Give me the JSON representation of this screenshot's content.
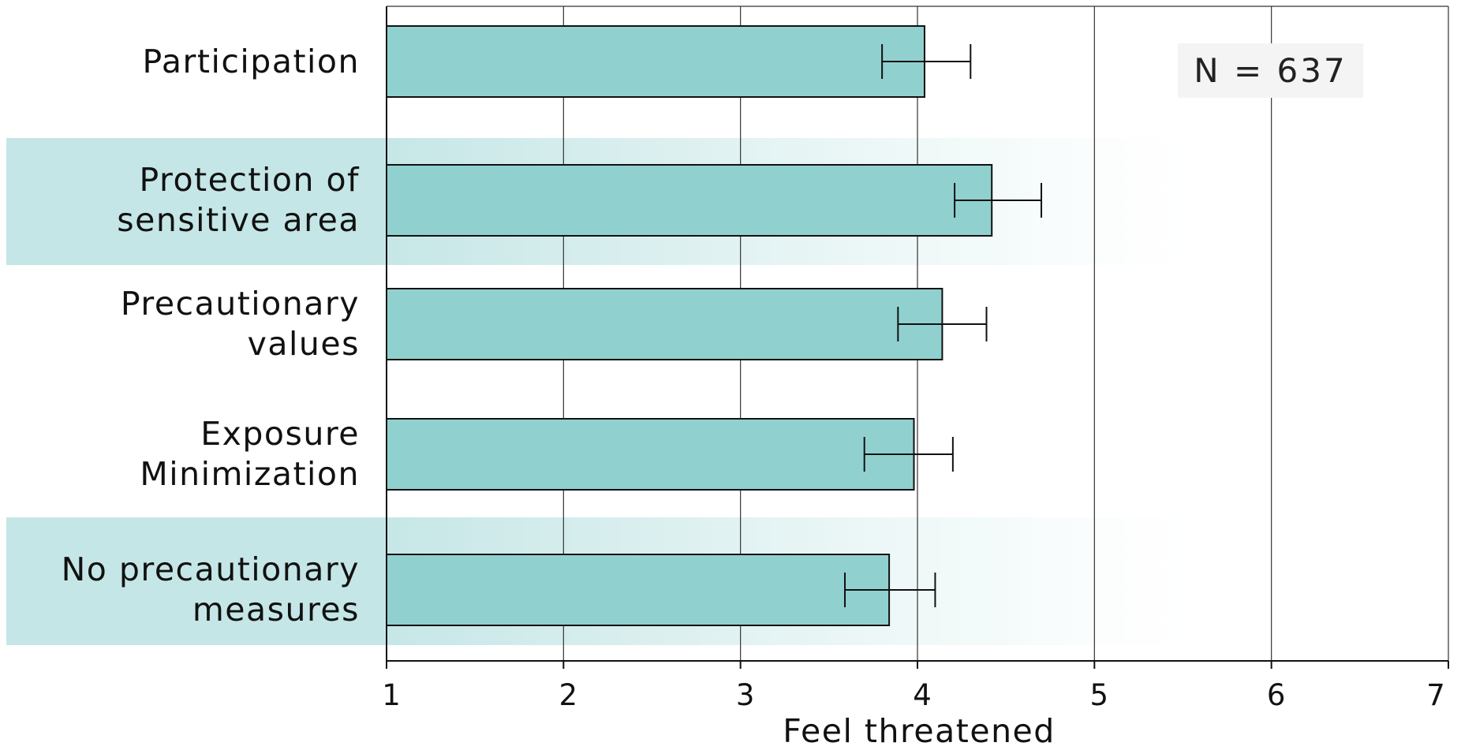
{
  "chart_data": {
    "type": "bar",
    "orientation": "horizontal",
    "categories": [
      "Participation",
      "Protection of\nsensitive area",
      "Precautionary\nvalues",
      "Exposure\nMinimization",
      "No precautionary\nmeasures"
    ],
    "values": [
      4.04,
      4.42,
      4.14,
      3.98,
      3.84
    ],
    "error_low": [
      3.8,
      4.21,
      3.89,
      3.7,
      3.59
    ],
    "error_high": [
      4.3,
      4.7,
      4.39,
      4.2,
      4.1
    ],
    "highlighted_categories": [
      1,
      4
    ],
    "xlabel": "Feel threatened",
    "xlim": [
      1,
      7
    ],
    "xticks": [
      "1",
      "2",
      "3",
      "4",
      "5",
      "6",
      "7"
    ],
    "annotation": "N = 637",
    "grid": "vertical",
    "colors": {
      "bar": "#90d1cf",
      "highlight": "#c5e6e6",
      "gridline": "#333333"
    }
  }
}
